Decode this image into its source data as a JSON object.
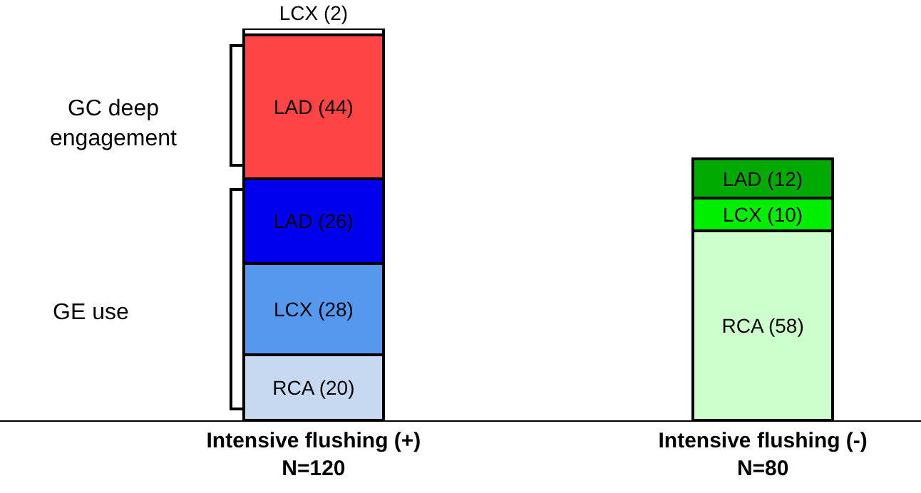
{
  "chart_data": {
    "type": "bar",
    "stacked": true,
    "categories": [
      "Intensive flushing (+)\nN=120",
      "Intensive flushing (-)\nN=80"
    ],
    "ylim": [
      0,
      120
    ],
    "series": [
      {
        "colors": [
          "#c6d9f1",
          "#ccffcc"
        ],
        "values": [
          20,
          58
        ],
        "value_labels": [
          "RCA (20)",
          "RCA (58)"
        ]
      },
      {
        "colors": [
          "#5599ee",
          "#00ee00"
        ],
        "values": [
          28,
          10
        ],
        "value_labels": [
          "LCX (28)",
          "LCX (10)"
        ]
      },
      {
        "colors": [
          "#0000ee",
          "#00aa00"
        ],
        "values": [
          26,
          12
        ],
        "value_labels": [
          "LAD (26)",
          "LAD (12)"
        ]
      },
      {
        "colors": [
          "#ff4444",
          null
        ],
        "values": [
          44,
          null
        ],
        "value_labels": [
          "LAD (44)",
          null
        ]
      },
      {
        "colors": [
          "#ffffff",
          null
        ],
        "values": [
          2,
          null
        ],
        "value_labels": [
          "LCX (2)",
          null
        ]
      }
    ],
    "annotations": [
      "GC deep engagement",
      "GE use"
    ]
  }
}
